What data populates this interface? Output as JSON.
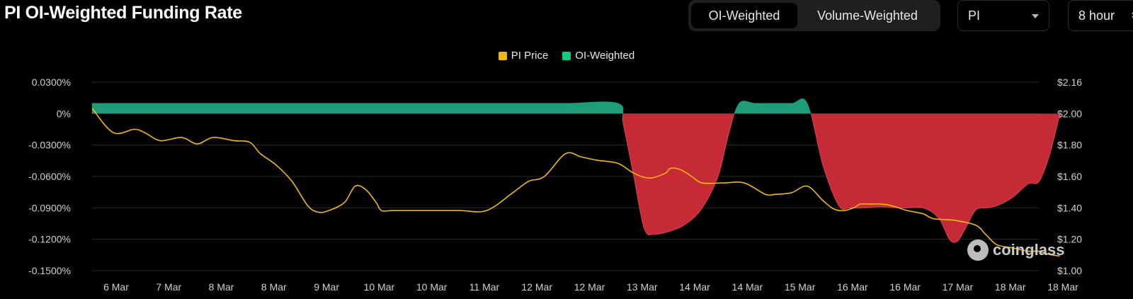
{
  "header": {
    "title": "PI OI-Weighted Funding Rate"
  },
  "toolbar": {
    "tabs": [
      {
        "label": "OI-Weighted",
        "active": true
      },
      {
        "label": "Volume-Weighted",
        "active": false
      }
    ],
    "coin_select": "PI",
    "interval_select": "8 hour"
  },
  "watermark": {
    "text": "coinglass"
  },
  "colors": {
    "price": "#f0b90b",
    "positive": "#0ecb81",
    "negative": "#c62a37"
  },
  "chart_data": {
    "type": "area",
    "title": "PI OI-Weighted Funding Rate",
    "legend": {
      "placement": "top-center",
      "entries": [
        "PI Price",
        "OI-Weighted"
      ]
    },
    "x_labels": [
      "6 Mar",
      "7 Mar",
      "8 Mar",
      "8 Mar",
      "9 Mar",
      "10 Mar",
      "10 Mar",
      "11 Mar",
      "12 Mar",
      "12 Mar",
      "13 Mar",
      "14 Mar",
      "14 Mar",
      "15 Mar",
      "16 Mar",
      "16 Mar",
      "17 Mar",
      "18 Mar",
      "18 Mar"
    ],
    "y_left": {
      "unit": "%",
      "ticks": [
        "0.0300%",
        "0%",
        "-0.0300%",
        "-0.0600%",
        "-0.0900%",
        "-0.1200%",
        "-0.1500%"
      ],
      "range": [
        -0.15,
        0.03
      ]
    },
    "y_right": {
      "unit": "$",
      "ticks": [
        "$2.16",
        "$2.00",
        "$1.80",
        "$1.60",
        "$1.40",
        "$1.20",
        "$1.00"
      ],
      "range": [
        1.0,
        2.16
      ]
    },
    "grid": true,
    "series": [
      {
        "name": "OI-Weighted",
        "axis": "left",
        "x": [
          0,
          1,
          2,
          3,
          4,
          5,
          6,
          7,
          8,
          9,
          10,
          10.1,
          10.3,
          10.5,
          10.7,
          11,
          11.3,
          11.6,
          11.9,
          12.1,
          12.3,
          12.6,
          12.9,
          13.3,
          13.6,
          13.9,
          14.2,
          14.4,
          14.6,
          15,
          15.4,
          15.8,
          16.1,
          16.3,
          16.45,
          16.6,
          16.8,
          17,
          17.2,
          17.5,
          17.8,
          18,
          18.2,
          18.4
        ],
        "values": [
          0.01,
          0.01,
          0.01,
          0.01,
          0.01,
          0.01,
          0.01,
          0.01,
          0.01,
          0.01,
          0.01,
          -0.01,
          -0.06,
          -0.11,
          -0.115,
          -0.112,
          -0.105,
          -0.09,
          -0.06,
          -0.02,
          0.01,
          0.01,
          0.01,
          0.01,
          0.01,
          -0.05,
          -0.088,
          -0.09,
          -0.09,
          -0.089,
          -0.09,
          -0.09,
          -0.1,
          -0.12,
          -0.122,
          -0.11,
          -0.092,
          -0.09,
          -0.088,
          -0.08,
          -0.067,
          -0.065,
          -0.04,
          0.0
        ]
      },
      {
        "name": "PI Price",
        "axis": "right",
        "x": [
          0,
          0.4,
          0.8,
          1.0,
          1.3,
          1.7,
          2.0,
          2.3,
          2.7,
          3.0,
          3.2,
          3.5,
          3.8,
          4.1,
          4.3,
          4.5,
          4.8,
          5.0,
          5.2,
          5.4,
          5.5,
          5.7,
          6.0,
          6.5,
          7.0,
          7.5,
          8.0,
          8.3,
          8.6,
          9.0,
          9.3,
          9.6,
          10.0,
          10.3,
          10.6,
          10.9,
          11.0,
          11.2,
          11.4,
          11.6,
          12.0,
          12.4,
          12.8,
          13.0,
          13.3,
          13.6,
          13.9,
          14.1,
          14.3,
          14.5,
          14.6,
          14.8,
          15.0,
          15.2,
          15.5,
          15.8,
          16.0,
          16.4,
          16.8,
          17.0,
          17.2,
          17.5,
          17.8,
          18.0,
          18.1,
          18.2,
          18.4
        ],
        "values": [
          2.0,
          1.85,
          1.87,
          1.85,
          1.8,
          1.82,
          1.78,
          1.82,
          1.8,
          1.79,
          1.72,
          1.65,
          1.55,
          1.4,
          1.36,
          1.37,
          1.42,
          1.52,
          1.5,
          1.42,
          1.37,
          1.37,
          1.37,
          1.37,
          1.37,
          1.37,
          1.48,
          1.55,
          1.58,
          1.72,
          1.7,
          1.68,
          1.66,
          1.6,
          1.57,
          1.6,
          1.63,
          1.62,
          1.58,
          1.54,
          1.54,
          1.54,
          1.47,
          1.47,
          1.48,
          1.52,
          1.43,
          1.38,
          1.37,
          1.39,
          1.41,
          1.41,
          1.41,
          1.4,
          1.37,
          1.35,
          1.32,
          1.31,
          1.28,
          1.22,
          1.16,
          1.14,
          1.12,
          1.12,
          1.11,
          1.1,
          1.09
        ]
      }
    ]
  }
}
